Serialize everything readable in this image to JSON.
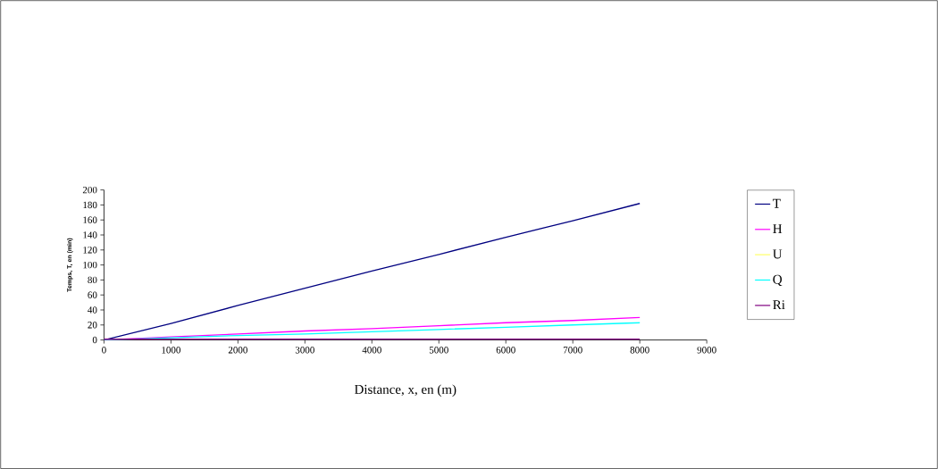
{
  "chart_data": {
    "type": "line",
    "xlabel": "Distance, x, en (m)",
    "ylabel": "Temps, T, en (min)",
    "x": [
      0,
      1000,
      2000,
      3000,
      4000,
      5000,
      6000,
      7000,
      8000
    ],
    "series": [
      {
        "name": "T",
        "color": "#000080",
        "values": [
          0,
          22,
          46,
          69,
          92,
          114,
          137,
          159,
          182
        ]
      },
      {
        "name": "H",
        "color": "#ff00ff",
        "values": [
          0,
          4,
          8,
          12,
          15,
          19,
          23,
          26,
          30
        ]
      },
      {
        "name": "U",
        "color": "#ffff66",
        "values": [
          null,
          null,
          null,
          null,
          null,
          null,
          null,
          null,
          null
        ]
      },
      {
        "name": "Q",
        "color": "#00ffff",
        "values": [
          0,
          3,
          6,
          8,
          11,
          14,
          17,
          20,
          23
        ]
      },
      {
        "name": "Ri",
        "color": "#800080",
        "values": [
          1,
          1,
          1,
          1,
          1,
          1,
          1,
          1,
          1
        ]
      }
    ],
    "xlim": [
      0,
      9000
    ],
    "ylim": [
      0,
      200
    ],
    "xticks": [
      0,
      1000,
      2000,
      3000,
      4000,
      5000,
      6000,
      7000,
      8000,
      9000
    ],
    "yticks": [
      0,
      20,
      40,
      60,
      80,
      100,
      120,
      140,
      160,
      180,
      200
    ],
    "grid": false,
    "legend": "right",
    "marker": "none",
    "line_style": "solid"
  }
}
